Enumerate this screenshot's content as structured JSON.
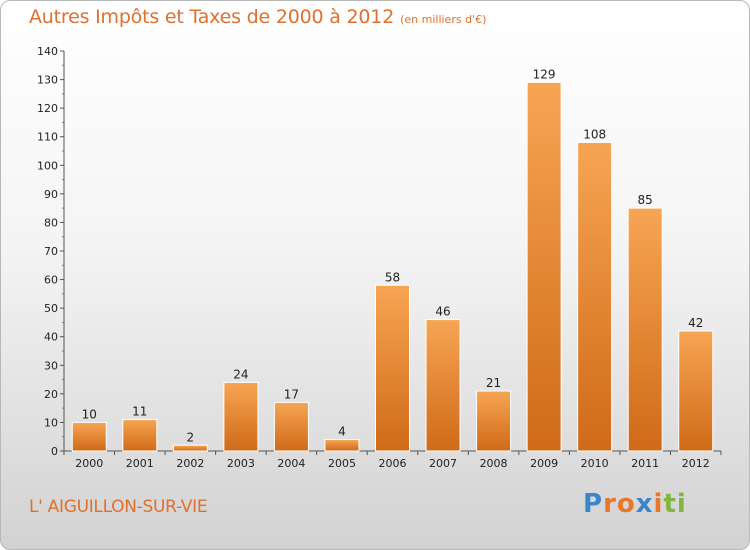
{
  "title": "Autres Impôts et Taxes de 2000 à 2012",
  "subtitle": "(en milliers d'€)",
  "city": "L' AIGUILLON-SUR-VIE",
  "logo": {
    "letters": [
      "P",
      "r",
      "o",
      "x",
      "i",
      "t",
      "i"
    ],
    "colors": [
      "#3a86c8",
      "#e8762c",
      "#e8762c",
      "#3a86c8",
      "#e8762c",
      "#82b440",
      "#82b440"
    ]
  },
  "colors": {
    "accent": "#e0702d",
    "bar_top": "#f7a553",
    "bar_bottom": "#cf6a18",
    "bar_edge": "#ffffff"
  },
  "chart_data": {
    "type": "bar",
    "categories": [
      "2000",
      "2001",
      "2002",
      "2003",
      "2004",
      "2005",
      "2006",
      "2007",
      "2008",
      "2009",
      "2010",
      "2011",
      "2012"
    ],
    "values": [
      10,
      11,
      2,
      24,
      17,
      4,
      58,
      46,
      21,
      129,
      108,
      85,
      42
    ],
    "value_labels": [
      "10",
      "11",
      "2",
      "24",
      "17",
      "4",
      "58",
      "46",
      "21",
      "129",
      "108",
      "85",
      "42"
    ],
    "title": "Autres Impôts et Taxes de 2000 à 2012",
    "xlabel": "",
    "ylabel": "",
    "ylim": [
      0,
      140
    ],
    "yticks": [
      0,
      10,
      20,
      30,
      40,
      50,
      60,
      70,
      80,
      90,
      100,
      110,
      120,
      130,
      140
    ],
    "grid": false,
    "legend": "none"
  }
}
